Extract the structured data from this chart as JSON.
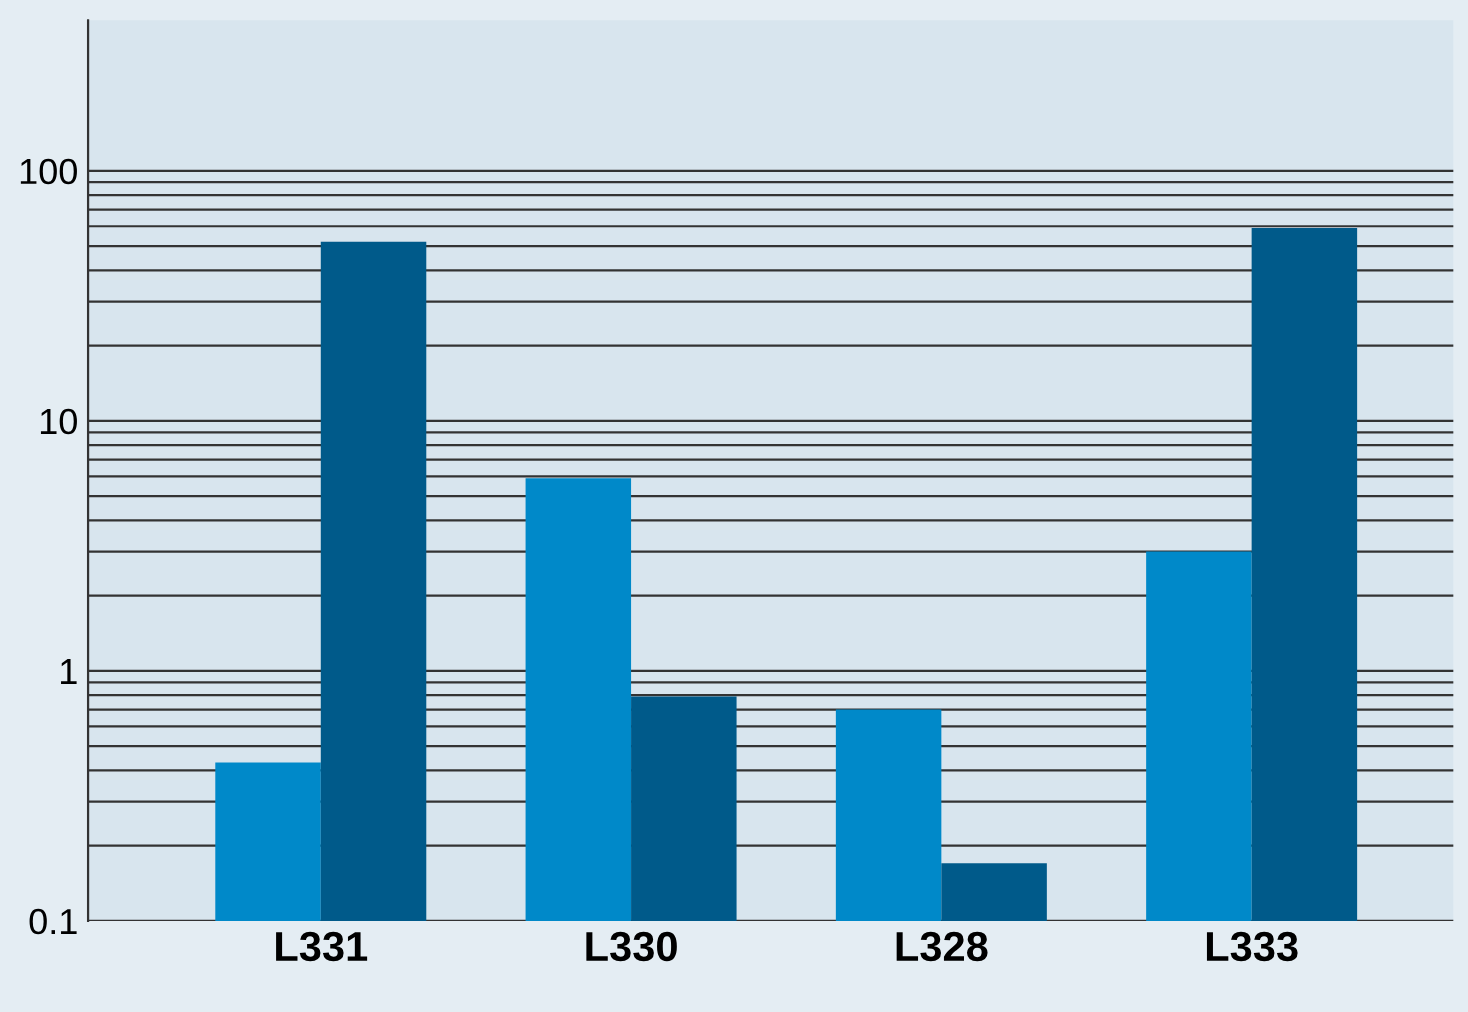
{
  "chart_data": {
    "type": "bar",
    "log": true,
    "categories": [
      "L331",
      "L330",
      "L328",
      "L333"
    ],
    "series": [
      {
        "color": "#0089c9",
        "values": [
          0.43,
          5.9,
          0.7,
          3.0
        ]
      },
      {
        "color": "#005a8a",
        "values": [
          52,
          0.79,
          0.17,
          59
        ]
      }
    ],
    "ylim": [
      0.1,
      400
    ],
    "yticks": [
      0.1,
      {
        "value": 0.2,
        "label": null
      },
      {
        "value": 0.3,
        "label": null
      },
      {
        "value": 0.4,
        "label": null
      },
      {
        "value": 0.5,
        "label": null
      },
      {
        "value": 0.6,
        "label": null
      },
      {
        "value": 0.7,
        "label": null
      },
      {
        "value": 0.8,
        "label": null
      },
      {
        "value": 0.9,
        "label": null
      },
      1,
      {
        "value": 2,
        "label": null
      },
      {
        "value": 3,
        "label": null
      },
      {
        "value": 4,
        "label": null
      },
      {
        "value": 5,
        "label": null
      },
      {
        "value": 6,
        "label": null
      },
      {
        "value": 7,
        "label": null
      },
      {
        "value": 8,
        "label": null
      },
      {
        "value": 9,
        "label": null
      },
      10,
      {
        "value": 20,
        "label": null
      },
      {
        "value": 30,
        "label": null
      },
      {
        "value": 40,
        "label": null
      },
      {
        "value": 50,
        "label": null
      },
      {
        "value": 60,
        "label": null
      },
      {
        "value": 70,
        "label": null
      },
      {
        "value": 80,
        "label": null
      },
      {
        "value": 90,
        "label": null
      },
      100
    ],
    "grid": "y"
  }
}
